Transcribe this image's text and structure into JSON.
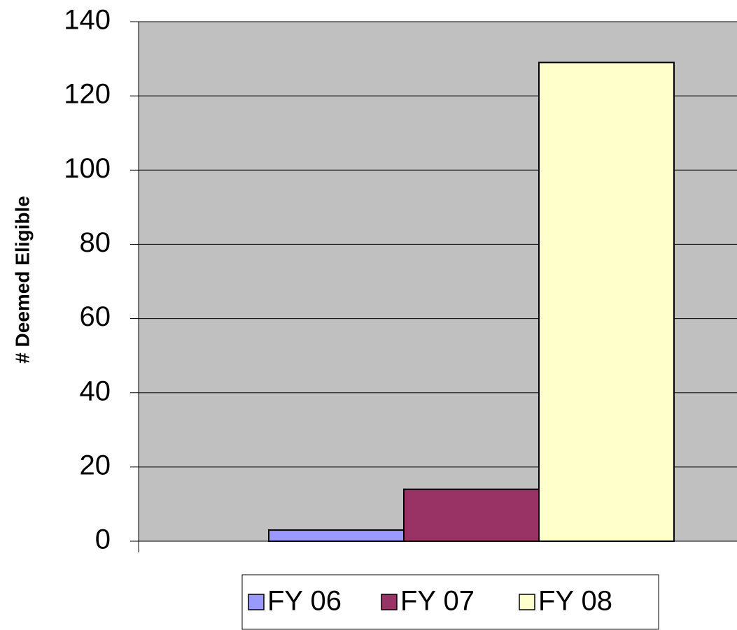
{
  "chart_data": {
    "type": "bar",
    "y_label": "# Deemed Eligible",
    "categories": [
      null
    ],
    "series": [
      {
        "name": "FY 06",
        "color": "#9999ff",
        "values": [
          3
        ]
      },
      {
        "name": "FY 07",
        "color": "#993366",
        "values": [
          14
        ]
      },
      {
        "name": "FY 08",
        "color": "#ffffcc",
        "values": [
          129
        ]
      }
    ],
    "ylim": [
      0,
      140
    ],
    "yticks": [
      0,
      20,
      40,
      60,
      80,
      100,
      120,
      140
    ],
    "grid": true,
    "legend": "bottom",
    "plot_background": "#c0c0c0"
  }
}
